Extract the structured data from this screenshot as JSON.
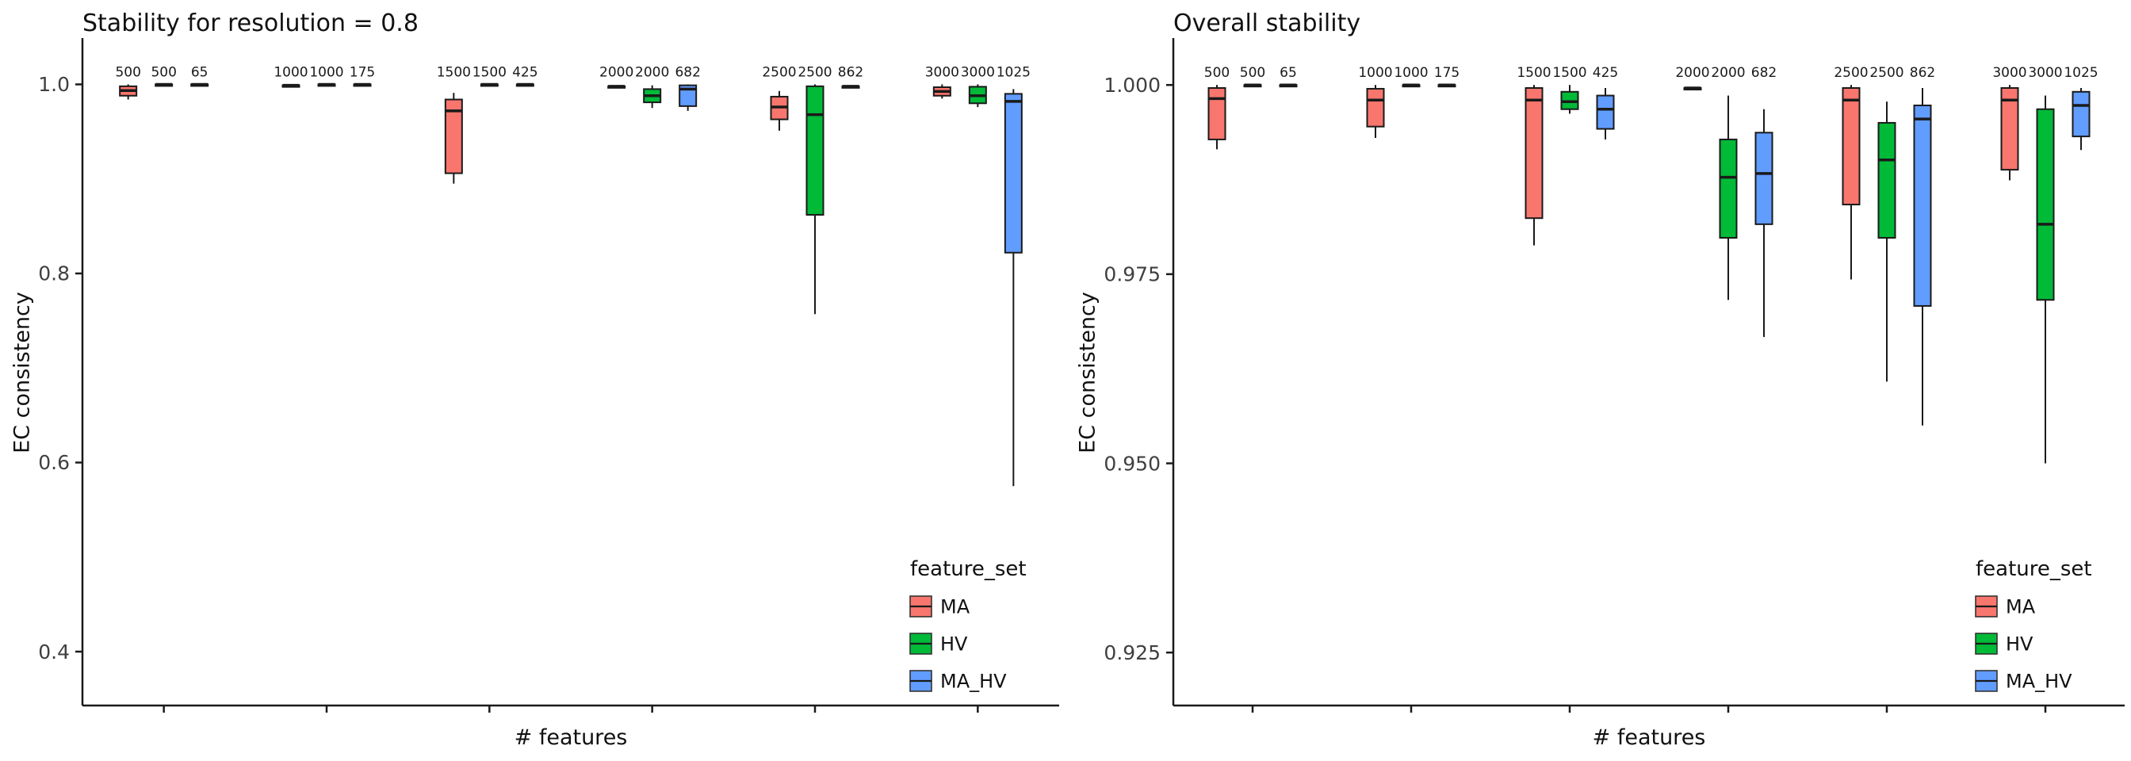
{
  "page": {
    "background": "#ffffff"
  },
  "chart_data": [
    {
      "type": "boxplot",
      "title": "Stability for resolution = 0.8",
      "xlabel": "# features",
      "ylabel": "EC consistency",
      "ylim": [
        0.343,
        1.049
      ],
      "grid": false,
      "legend_position": "inside-bottom-right",
      "yticks": [
        {
          "v": 1.0,
          "label": "1.0"
        },
        {
          "v": 0.8,
          "label": "0.8"
        },
        {
          "v": 0.6,
          "label": "0.6"
        },
        {
          "v": 0.4,
          "label": "0.4"
        }
      ],
      "colors": {
        "MA": "#F8766D",
        "HV": "#00BA38",
        "MA_HV": "#619CFF"
      },
      "legend": {
        "title": "feature_set",
        "entries": [
          {
            "label": "MA",
            "color": "#F8766D"
          },
          {
            "label": "HV",
            "color": "#00BA38"
          },
          {
            "label": "MA_HV",
            "color": "#619CFF"
          }
        ]
      },
      "groups": [
        {
          "boxes": [
            {
              "series": "MA",
              "label": "500",
              "lo": 0.984,
              "q1": 0.988,
              "med": 0.9935,
              "q3": 0.998,
              "hi": 1.0
            },
            {
              "series": "HV",
              "label": "500",
              "lo": 1.0,
              "q1": 1.0,
              "med": 1.0,
              "q3": 1.0,
              "hi": 1.0
            },
            {
              "series": "MA_HV",
              "label": "65",
              "lo": 1.0,
              "q1": 1.0,
              "med": 1.0,
              "q3": 1.0,
              "hi": 1.0
            }
          ]
        },
        {
          "boxes": [
            {
              "series": "MA",
              "label": "1000",
              "lo": 0.999,
              "q1": 0.999,
              "med": 0.999,
              "q3": 0.999,
              "hi": 0.999
            },
            {
              "series": "HV",
              "label": "1000",
              "lo": 1.0,
              "q1": 1.0,
              "med": 1.0,
              "q3": 1.0,
              "hi": 1.0
            },
            {
              "series": "MA_HV",
              "label": "175",
              "lo": 1.0,
              "q1": 1.0,
              "med": 1.0,
              "q3": 1.0,
              "hi": 1.0
            }
          ]
        },
        {
          "boxes": [
            {
              "series": "MA",
              "label": "1500",
              "lo": 0.895,
              "q1": 0.906,
              "med": 0.972,
              "q3": 0.984,
              "hi": 0.991
            },
            {
              "series": "HV",
              "label": "1500",
              "lo": 1.0,
              "q1": 1.0,
              "med": 1.0,
              "q3": 1.0,
              "hi": 1.0
            },
            {
              "series": "MA_HV",
              "label": "425",
              "lo": 1.0,
              "q1": 1.0,
              "med": 1.0,
              "q3": 1.0,
              "hi": 1.0
            }
          ]
        },
        {
          "boxes": [
            {
              "series": "MA",
              "label": "2000",
              "lo": 0.998,
              "q1": 0.998,
              "med": 0.998,
              "q3": 0.998,
              "hi": 0.998
            },
            {
              "series": "HV",
              "label": "2000",
              "lo": 0.975,
              "q1": 0.981,
              "med": 0.988,
              "q3": 0.995,
              "hi": 0.999
            },
            {
              "series": "MA_HV",
              "label": "682",
              "lo": 0.972,
              "q1": 0.977,
              "med": 0.995,
              "q3": 0.999,
              "hi": 1.0
            }
          ]
        },
        {
          "boxes": [
            {
              "series": "MA",
              "label": "2500",
              "lo": 0.951,
              "q1": 0.963,
              "med": 0.976,
              "q3": 0.987,
              "hi": 0.993
            },
            {
              "series": "HV",
              "label": "2500",
              "lo": 0.757,
              "q1": 0.862,
              "med": 0.968,
              "q3": 0.998,
              "hi": 1.0
            },
            {
              "series": "MA_HV",
              "label": "862",
              "lo": 0.998,
              "q1": 0.998,
              "med": 0.998,
              "q3": 0.998,
              "hi": 0.998
            }
          ]
        },
        {
          "boxes": [
            {
              "series": "MA",
              "label": "3000",
              "lo": 0.985,
              "q1": 0.988,
              "med": 0.9925,
              "q3": 0.997,
              "hi": 1.0
            },
            {
              "series": "HV",
              "label": "3000",
              "lo": 0.976,
              "q1": 0.98,
              "med": 0.988,
              "q3": 0.9975,
              "hi": 1.0
            },
            {
              "series": "MA_HV",
              "label": "1025",
              "lo": 0.575,
              "q1": 0.822,
              "med": 0.982,
              "q3": 0.99,
              "hi": 0.995
            }
          ]
        }
      ]
    },
    {
      "type": "boxplot",
      "title": "Overall stability",
      "xlabel": "# features",
      "ylabel": "EC consistency",
      "ylim": [
        0.918,
        1.0062
      ],
      "grid": false,
      "legend_position": "inside-bottom-right",
      "yticks": [
        {
          "v": 1.0,
          "label": "1.000"
        },
        {
          "v": 0.975,
          "label": "0.975"
        },
        {
          "v": 0.95,
          "label": "0.950"
        },
        {
          "v": 0.925,
          "label": "0.925"
        }
      ],
      "colors": {
        "MA": "#F8766D",
        "HV": "#00BA38",
        "MA_HV": "#619CFF"
      },
      "legend": {
        "title": "feature_set",
        "entries": [
          {
            "label": "MA",
            "color": "#F8766D"
          },
          {
            "label": "HV",
            "color": "#00BA38"
          },
          {
            "label": "MA_HV",
            "color": "#619CFF"
          }
        ]
      },
      "groups": [
        {
          "boxes": [
            {
              "series": "MA",
              "label": "500",
              "lo": 0.9915,
              "q1": 0.9928,
              "med": 0.9982,
              "q3": 0.9996,
              "hi": 1.0
            },
            {
              "series": "HV",
              "label": "500",
              "lo": 1.0,
              "q1": 1.0,
              "med": 1.0,
              "q3": 1.0,
              "hi": 1.0
            },
            {
              "series": "MA_HV",
              "label": "65",
              "lo": 1.0,
              "q1": 1.0,
              "med": 1.0,
              "q3": 1.0,
              "hi": 1.0
            }
          ]
        },
        {
          "boxes": [
            {
              "series": "MA",
              "label": "1000",
              "lo": 0.993,
              "q1": 0.9945,
              "med": 0.998,
              "q3": 0.9995,
              "hi": 1.0
            },
            {
              "series": "HV",
              "label": "1000",
              "lo": 1.0,
              "q1": 1.0,
              "med": 1.0,
              "q3": 1.0,
              "hi": 1.0
            },
            {
              "series": "MA_HV",
              "label": "175",
              "lo": 1.0,
              "q1": 1.0,
              "med": 1.0,
              "q3": 1.0,
              "hi": 1.0
            }
          ]
        },
        {
          "boxes": [
            {
              "series": "MA",
              "label": "1500",
              "lo": 0.9788,
              "q1": 0.9824,
              "med": 0.998,
              "q3": 0.9996,
              "hi": 1.0
            },
            {
              "series": "HV",
              "label": "1500",
              "lo": 0.9962,
              "q1": 0.9968,
              "med": 0.9978,
              "q3": 0.9991,
              "hi": 1.0
            },
            {
              "series": "MA_HV",
              "label": "425",
              "lo": 0.9928,
              "q1": 0.9942,
              "med": 0.9968,
              "q3": 0.9986,
              "hi": 0.9996
            }
          ]
        },
        {
          "boxes": [
            {
              "series": "MA",
              "label": "2000",
              "lo": 0.9996,
              "q1": 0.9996,
              "med": 0.9996,
              "q3": 0.9996,
              "hi": 0.9996
            },
            {
              "series": "HV",
              "label": "2000",
              "lo": 0.9716,
              "q1": 0.9798,
              "med": 0.9878,
              "q3": 0.9928,
              "hi": 0.9986
            },
            {
              "series": "MA_HV",
              "label": "682",
              "lo": 0.9667,
              "q1": 0.9816,
              "med": 0.9883,
              "q3": 0.9937,
              "hi": 0.9968
            }
          ]
        },
        {
          "boxes": [
            {
              "series": "MA",
              "label": "2500",
              "lo": 0.9743,
              "q1": 0.9842,
              "med": 0.998,
              "q3": 0.9996,
              "hi": 1.0
            },
            {
              "series": "HV",
              "label": "2500",
              "lo": 0.9608,
              "q1": 0.9798,
              "med": 0.9901,
              "q3": 0.995,
              "hi": 0.9978
            },
            {
              "series": "MA_HV",
              "label": "862",
              "lo": 0.955,
              "q1": 0.9708,
              "med": 0.9955,
              "q3": 0.9973,
              "hi": 0.9996
            }
          ]
        },
        {
          "boxes": [
            {
              "series": "MA",
              "label": "3000",
              "lo": 0.9874,
              "q1": 0.9888,
              "med": 0.998,
              "q3": 0.9996,
              "hi": 1.0
            },
            {
              "series": "HV",
              "label": "3000",
              "lo": 0.95,
              "q1": 0.9716,
              "med": 0.9816,
              "q3": 0.9968,
              "hi": 0.9986
            },
            {
              "series": "MA_HV",
              "label": "1025",
              "lo": 0.9914,
              "q1": 0.9932,
              "med": 0.9973,
              "q3": 0.9991,
              "hi": 0.9996
            }
          ]
        }
      ]
    }
  ]
}
